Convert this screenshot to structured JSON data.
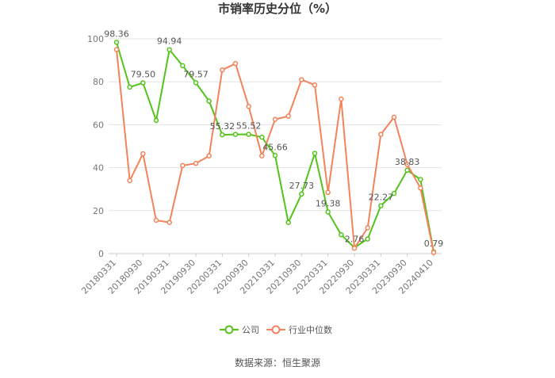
{
  "chart_data": {
    "type": "line",
    "title": "市销率历史分位（%）",
    "source": "数据来源：恒生聚源",
    "ylim": [
      0,
      100
    ],
    "yticks": [
      0,
      20,
      40,
      60,
      80,
      100
    ],
    "x_tick_labels": [
      "20180331",
      "20180930",
      "20190331",
      "20190930",
      "20200331",
      "20200930",
      "20210331",
      "20210930",
      "20220331",
      "20220930",
      "20230331",
      "20230930",
      "20240410"
    ],
    "x": [
      "20180331",
      "20180630",
      "20180930",
      "20181231",
      "20190331",
      "20190630",
      "20190930",
      "20191231",
      "20200331",
      "20200630",
      "20200930",
      "20201231",
      "20210331",
      "20210630",
      "20210930",
      "20211231",
      "20220331",
      "20220630",
      "20220930",
      "20221231",
      "20230331",
      "20230630",
      "20230930",
      "20231231",
      "20240410"
    ],
    "grid": true,
    "legend_position": "bottom",
    "series": [
      {
        "name": "公司",
        "color": "#52c41a",
        "values": [
          98.36,
          77.5,
          79.5,
          62.0,
          94.94,
          87.5,
          79.57,
          71.0,
          55.32,
          55.5,
          55.52,
          54.2,
          45.66,
          14.5,
          27.73,
          46.7,
          19.38,
          8.8,
          2.76,
          6.8,
          22.27,
          28.0,
          38.83,
          34.5,
          0.79
        ],
        "labels": {
          "0": "98.36",
          "2": "79.50",
          "4": "94.94",
          "6": "79.57",
          "8": "55.32",
          "10": "55.52",
          "12": "45.66",
          "14": "27.73",
          "16": "19.38",
          "18": "2.76",
          "20": "22.27",
          "22": "38.83",
          "24": "0.79"
        }
      },
      {
        "name": "行业中位数",
        "color": "#f4825a",
        "values": [
          95.0,
          34.0,
          46.5,
          15.5,
          14.5,
          41.0,
          42.0,
          45.5,
          85.5,
          88.5,
          68.5,
          45.5,
          62.5,
          64.0,
          81.0,
          78.5,
          28.5,
          72.0,
          2.5,
          12.0,
          55.5,
          63.5,
          41.5,
          30.5,
          0.5
        ],
        "labels": {}
      }
    ]
  }
}
